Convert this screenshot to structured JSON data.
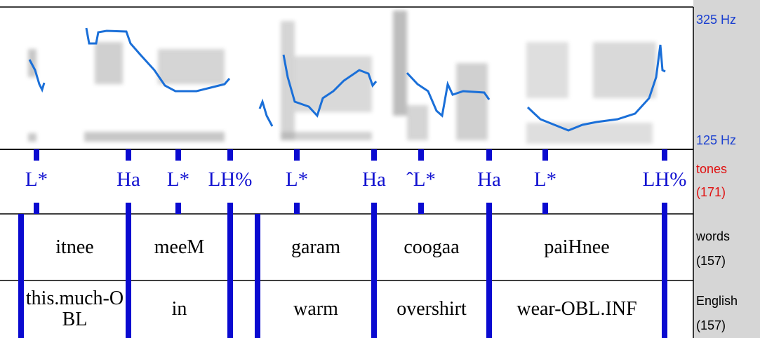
{
  "axis": {
    "top": "325 Hz",
    "bottom": "125 Hz"
  },
  "tiers": [
    {
      "name": "tones",
      "count": "(171)",
      "labels": [
        "L*",
        "Ha",
        "L*",
        "LH%",
        "L*",
        "Ha",
        "ˆL*",
        "Ha",
        "L*",
        "LH%"
      ]
    },
    {
      "name": "words",
      "count": "(157)",
      "labels": [
        "itnee",
        "meeM",
        "garam",
        "coogaa",
        "paiHnee"
      ]
    },
    {
      "name": "English",
      "count": "(157)",
      "labels": [
        "this.much-OBL",
        "in",
        "warm",
        "overshirt",
        "wear-OBL.INF"
      ]
    }
  ]
}
